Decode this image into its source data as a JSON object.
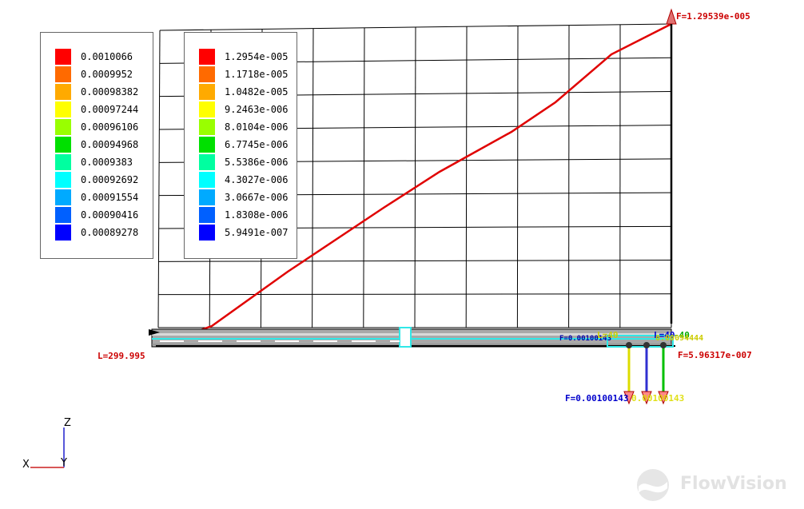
{
  "legend_left": {
    "values": [
      "0.0010066",
      "0.0009952",
      "0.00098382",
      "0.00097244",
      "0.00096106",
      "0.00094968",
      "0.0009383",
      "0.00092692",
      "0.00091554",
      "0.00090416",
      "0.00089278"
    ],
    "colors": [
      "#ff0000",
      "#ff6a00",
      "#ffaa00",
      "#ffff00",
      "#99ff00",
      "#00e000",
      "#00ffa0",
      "#00ffff",
      "#00aaff",
      "#0060ff",
      "#0000ff"
    ]
  },
  "legend_right": {
    "values": [
      "1.2954e-005",
      "1.1718e-005",
      "1.0482e-005",
      "9.2463e-006",
      "8.0104e-006",
      "6.7745e-006",
      "5.5386e-006",
      "4.3027e-006",
      "3.0667e-006",
      "1.8308e-006",
      "5.9491e-007"
    ],
    "colors": [
      "#ff0000",
      "#ff6a00",
      "#ffaa00",
      "#ffff00",
      "#99ff00",
      "#00e000",
      "#00ffa0",
      "#00ffff",
      "#00aaff",
      "#0060ff",
      "#0000ff"
    ]
  },
  "labels": {
    "f_top": "F=1.29539e-005",
    "l_left": "L=299.995",
    "l_40_yellow": "L=40",
    "l_40_blue": "L=40",
    "l_40_green": "-40",
    "val_444": "0.00094444",
    "f_bottom_right": "F=5.96317e-007",
    "f_overlap_blue": "F=0.00100143",
    "f_overlap_green": "0.00100143",
    "f_small_overlap": "F=0.00100143"
  },
  "axes": {
    "z": "Z",
    "x": "X",
    "y": "Y"
  },
  "brand": {
    "name": "FlowVision"
  },
  "colors": {
    "curve": "#e00000",
    "grid": "#000000",
    "beam": "#20e0e0"
  }
}
